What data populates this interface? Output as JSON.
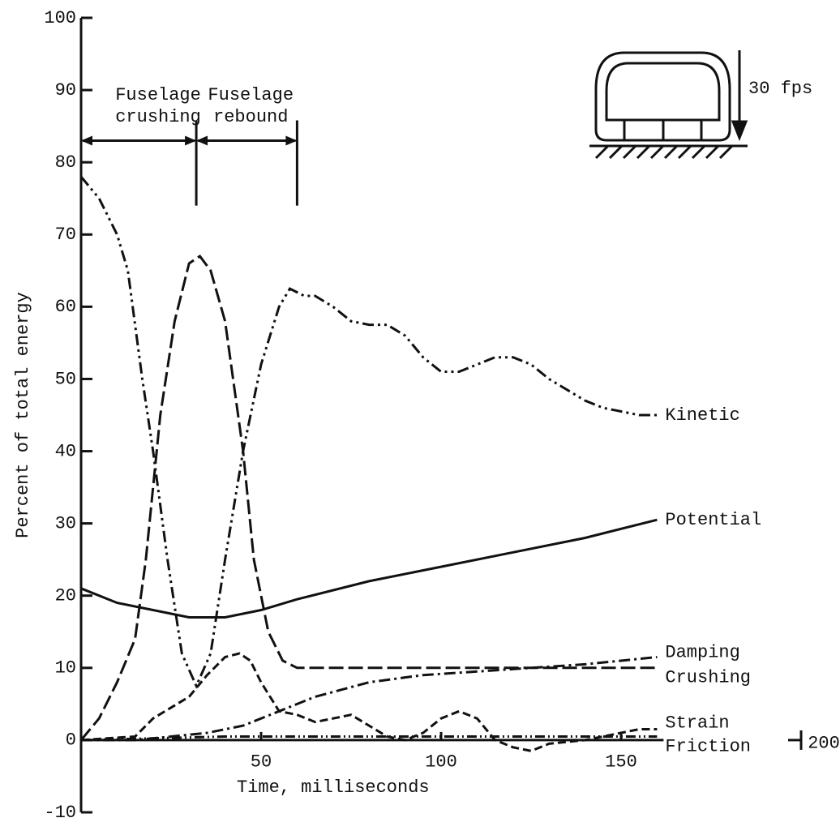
{
  "chart_data": {
    "type": "line",
    "x_label": "Time, milliseconds",
    "y_label": "Percent of total energy",
    "xlim": [
      0,
      200
    ],
    "xticks": [
      50,
      100,
      150,
      200
    ],
    "ylim": [
      -10,
      100
    ],
    "yticks": [
      -10,
      0,
      10,
      20,
      30,
      40,
      50,
      60,
      70,
      80,
      90,
      100
    ],
    "series": [
      {
        "name": "Kinetic",
        "color": "#111111",
        "dash": "14 5 3 5 3 5",
        "x": [
          0,
          5,
          10,
          13,
          17,
          20,
          24,
          28,
          32,
          36,
          40,
          45,
          50,
          55,
          58,
          62,
          65,
          70,
          75,
          80,
          85,
          90,
          95,
          100,
          105,
          110,
          115,
          120,
          125,
          130,
          135,
          140,
          145,
          150,
          155,
          160
        ],
        "values": [
          78,
          75,
          70,
          65,
          50,
          40,
          25,
          12,
          7.5,
          12,
          25,
          40,
          52,
          60,
          62.5,
          61.5,
          61.5,
          60,
          58,
          57.5,
          57.5,
          56,
          53,
          51,
          51,
          52,
          53,
          53,
          52,
          50,
          48.5,
          47,
          46,
          45.5,
          45,
          45
        ]
      },
      {
        "name": "Potential",
        "color": "#111111",
        "dash": "none",
        "x": [
          0,
          10,
          20,
          30,
          40,
          50,
          60,
          80,
          100,
          120,
          140,
          160
        ],
        "values": [
          21,
          19,
          18,
          17,
          17,
          18,
          19.5,
          22,
          24,
          26,
          28,
          30.5
        ]
      },
      {
        "name": "Damping",
        "color": "#111111",
        "dash": "14 5 3 5",
        "x": [
          0,
          15,
          25,
          35,
          45,
          55,
          65,
          80,
          95,
          110,
          125,
          140,
          160
        ],
        "values": [
          0,
          0,
          0.5,
          1,
          2,
          4,
          6,
          8,
          9,
          9.5,
          10,
          10.5,
          11.5
        ]
      },
      {
        "name": "Crushing",
        "color": "#111111",
        "dash": "18 6",
        "x": [
          0,
          5,
          10,
          15,
          18,
          22,
          26,
          30,
          33,
          36,
          40,
          45,
          48,
          52,
          56,
          60,
          80,
          100,
          120,
          140,
          160
        ],
        "values": [
          0,
          3,
          8,
          14,
          25,
          45,
          58,
          66,
          67,
          65,
          58,
          40,
          25,
          15,
          11,
          10,
          10,
          10,
          10,
          10,
          10
        ]
      },
      {
        "name": "Strain",
        "color": "#111111",
        "dash": "10 5",
        "x": [
          0,
          15,
          20,
          25,
          30,
          35,
          40,
          44,
          47,
          50,
          55,
          60,
          65,
          70,
          75,
          80,
          85,
          90,
          95,
          100,
          105,
          110,
          115,
          120,
          125,
          130,
          140,
          150,
          155,
          160
        ],
        "values": [
          0,
          0.5,
          3,
          4.5,
          6,
          9,
          11.5,
          12,
          11,
          8,
          4,
          3.5,
          2.5,
          3,
          3.5,
          2,
          0.5,
          0,
          1,
          3,
          4,
          3,
          0,
          -1,
          -1.5,
          -0.5,
          0,
          1,
          1.5,
          1.5
        ]
      },
      {
        "name": "Friction",
        "color": "#111111",
        "dash": "12 4 2 4 2 4",
        "x": [
          0,
          40,
          80,
          120,
          160
        ],
        "values": [
          0,
          0.5,
          0.5,
          0.5,
          0.5
        ]
      }
    ],
    "annotations": [
      {
        "lines": [
          "Fuselage",
          "crushing"
        ],
        "span": [
          0,
          32
        ],
        "y": 83
      },
      {
        "lines": [
          "Fuselage",
          "rebound"
        ],
        "span": [
          32,
          60
        ],
        "y": 83
      }
    ],
    "impact_speed": "30 fps"
  }
}
